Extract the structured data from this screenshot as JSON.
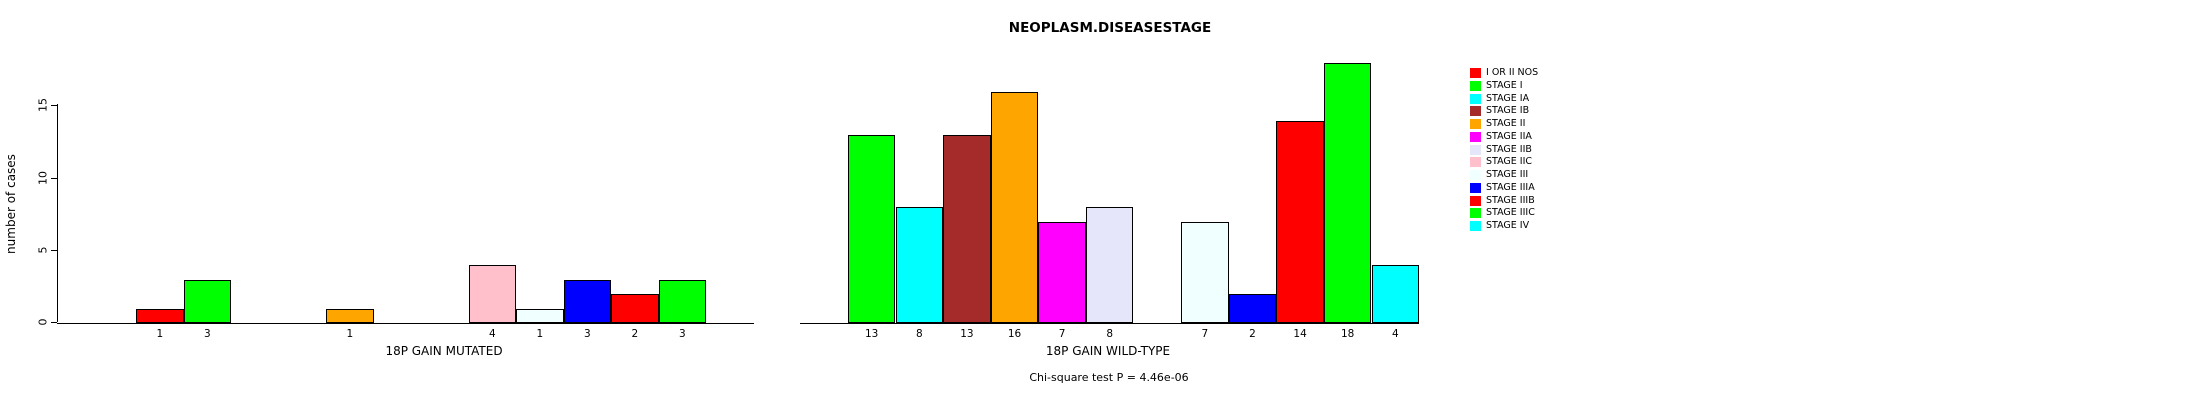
{
  "title": "NEOPLASM.DISEASESTAGE",
  "ylabel": "number of cases",
  "footer": "Chi-square test P = 4.46e-06",
  "y_axis": {
    "ticks": [
      0,
      5,
      10,
      15
    ],
    "max": 15
  },
  "legend": {
    "entries": [
      {
        "label": "I OR II NOS",
        "color": "#FF0000"
      },
      {
        "label": "STAGE I",
        "color": "#00FF00"
      },
      {
        "label": "STAGE IA",
        "color": "#00FFFF"
      },
      {
        "label": "STAGE IB",
        "color": "#A52A2A"
      },
      {
        "label": "STAGE II",
        "color": "#FFA500"
      },
      {
        "label": "STAGE IIA",
        "color": "#FF00FF"
      },
      {
        "label": "STAGE IIB",
        "color": "#E6E6FA"
      },
      {
        "label": "STAGE IIC",
        "color": "#FFC0CB"
      },
      {
        "label": "STAGE III",
        "color": "#F0FFFF"
      },
      {
        "label": "STAGE IIIA",
        "color": "#0000FF"
      },
      {
        "label": "STAGE IIIB",
        "color": "#FF0000"
      },
      {
        "label": "STAGE IIIC",
        "color": "#00FF00"
      },
      {
        "label": "STAGE IV",
        "color": "#00FFFF"
      }
    ]
  },
  "chart_data": [
    {
      "type": "bar",
      "xlabel": "18P GAIN MUTATED",
      "categories": [
        "I OR II NOS",
        "STAGE I",
        "STAGE IA",
        "STAGE IB",
        "STAGE II",
        "STAGE IIA",
        "STAGE IIB",
        "STAGE IIC",
        "STAGE III",
        "STAGE IIIA",
        "STAGE IIIB",
        "STAGE IIIC",
        "STAGE IV"
      ],
      "values": [
        1,
        3,
        0,
        0,
        1,
        0,
        0,
        4,
        1,
        3,
        2,
        3,
        0
      ],
      "bar_value_labels": [
        "1",
        "3",
        "",
        "",
        "1",
        "",
        "",
        "4",
        "1",
        "3",
        "2",
        "3",
        ""
      ],
      "colors": [
        "#FF0000",
        "#00FF00",
        "#00FFFF",
        "#A52A2A",
        "#FFA500",
        "#FF00FF",
        "#E6E6FA",
        "#FFC0CB",
        "#F0FFFF",
        "#0000FF",
        "#FF0000",
        "#00FF00",
        "#00FFFF"
      ],
      "ylim": [
        0,
        15
      ],
      "grid": false,
      "legend_position": "none"
    },
    {
      "type": "bar",
      "xlabel": "18P GAIN WILD-TYPE",
      "categories": [
        "I OR II NOS",
        "STAGE I",
        "STAGE IA",
        "STAGE IB",
        "STAGE II",
        "STAGE IIA",
        "STAGE IIB",
        "STAGE IIC",
        "STAGE III",
        "STAGE IIIA",
        "STAGE IIIB",
        "STAGE IIIC",
        "STAGE IV"
      ],
      "values": [
        0,
        13,
        8,
        13,
        16,
        7,
        8,
        0,
        7,
        2,
        14,
        18,
        4
      ],
      "bar_value_labels": [
        "",
        "13",
        "8",
        "13",
        "16",
        "7",
        "8",
        "",
        "7",
        "2",
        "14",
        "18",
        "4"
      ],
      "colors": [
        "#FF0000",
        "#00FF00",
        "#00FFFF",
        "#A52A2A",
        "#FFA500",
        "#FF00FF",
        "#E6E6FA",
        "#FFC0CB",
        "#F0FFFF",
        "#0000FF",
        "#FF0000",
        "#00FF00",
        "#00FFFF"
      ],
      "ylim": [
        0,
        15
      ],
      "grid": false,
      "legend_position": "right"
    }
  ]
}
